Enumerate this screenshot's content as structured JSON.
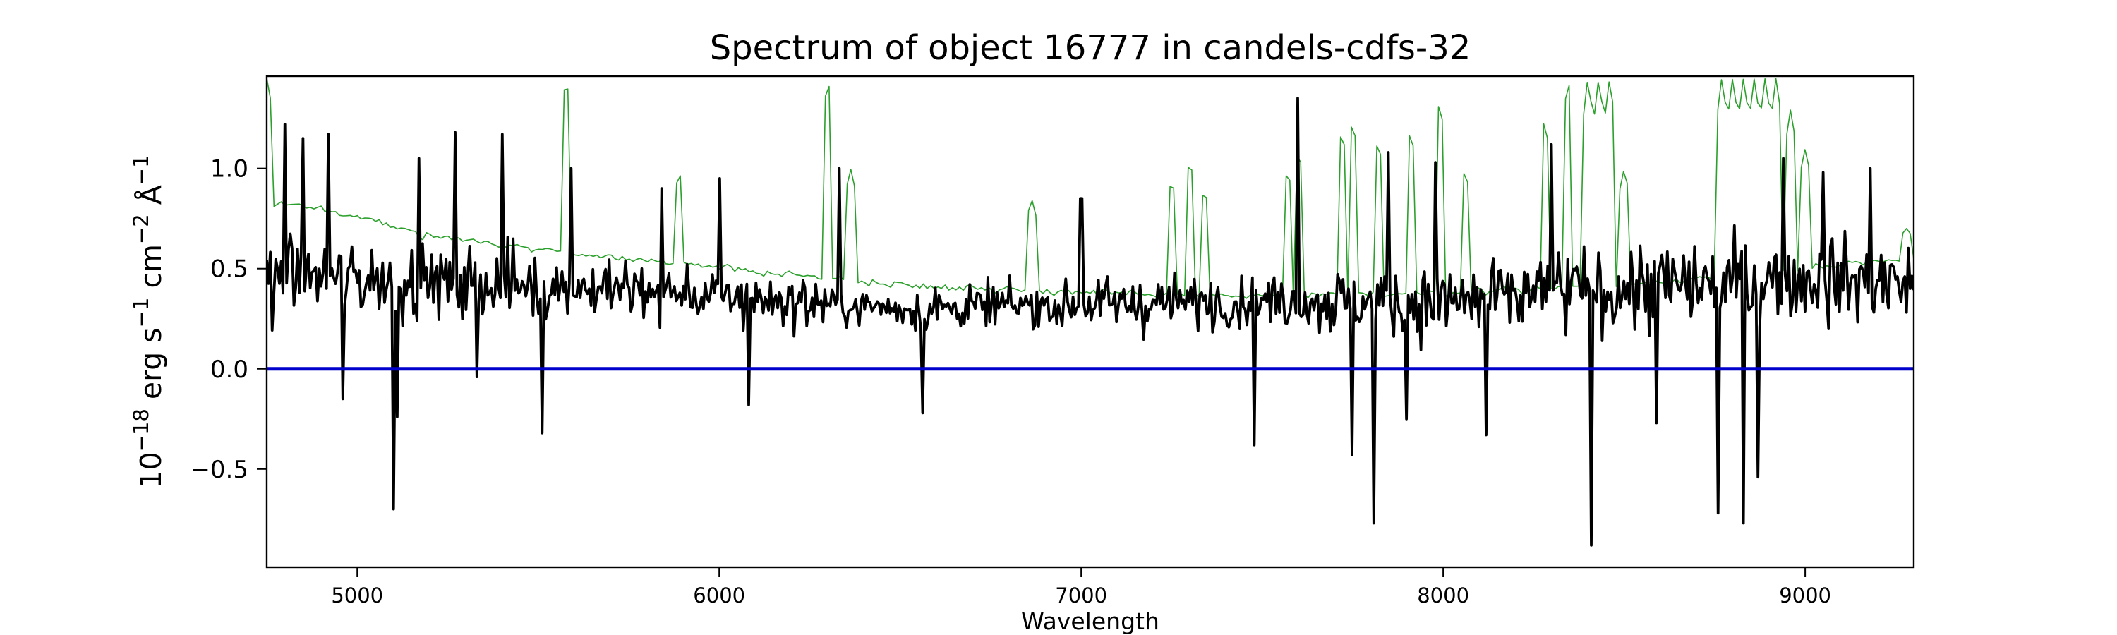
{
  "chart_data": {
    "type": "line",
    "title": "Spectrum of object 16777 in candels-cdfs-32",
    "xlabel": "Wavelength",
    "ylabel_parts": [
      "10",
      "−18",
      " erg s",
      "−1",
      " cm",
      "−2",
      " Å",
      "−1"
    ],
    "xlim": [
      4750,
      9300
    ],
    "ylim": [
      -0.99,
      1.46
    ],
    "x_ticks": [
      5000,
      6000,
      7000,
      8000,
      9000
    ],
    "x_tick_labels": [
      "5000",
      "6000",
      "7000",
      "8000",
      "9000"
    ],
    "y_ticks": [
      -0.5,
      0.0,
      0.5,
      1.0
    ],
    "y_tick_labels": [
      "−0.5",
      "0.0",
      "0.5",
      "1.0"
    ],
    "grid": false,
    "series": [
      {
        "role": "flux",
        "color": "#000000",
        "x_start": 4750,
        "x_end": 9300,
        "n": 910,
        "base_profile": [
          [
            4750,
            0.47
          ],
          [
            5000,
            0.45
          ],
          [
            5500,
            0.42
          ],
          [
            6000,
            0.36
          ],
          [
            6500,
            0.3
          ],
          [
            7000,
            0.32
          ],
          [
            7500,
            0.34
          ],
          [
            8000,
            0.33
          ],
          [
            8500,
            0.4
          ],
          [
            9000,
            0.45
          ],
          [
            9300,
            0.43
          ]
        ],
        "noise_profile": [
          [
            4750,
            0.26
          ],
          [
            5500,
            0.22
          ],
          [
            6500,
            0.13
          ],
          [
            7500,
            0.17
          ],
          [
            8300,
            0.28
          ],
          [
            9300,
            0.26
          ]
        ],
        "features": [
          [
            4800,
            1.22
          ],
          [
            4850,
            1.15
          ],
          [
            4920,
            1.17
          ],
          [
            4960,
            -0.15
          ],
          [
            5100,
            -0.7
          ],
          [
            5110,
            -0.24
          ],
          [
            5170,
            1.05
          ],
          [
            5270,
            1.18
          ],
          [
            5330,
            -0.04
          ],
          [
            5400,
            1.17
          ],
          [
            5510,
            -0.32
          ],
          [
            5590,
            1.0
          ],
          [
            5840,
            0.9
          ],
          [
            6000,
            0.95
          ],
          [
            6080,
            -0.18
          ],
          [
            6330,
            1.0
          ],
          [
            6560,
            -0.22
          ],
          [
            7000,
            0.85
          ],
          [
            7480,
            -0.38
          ],
          [
            7600,
            1.35
          ],
          [
            7750,
            -0.43
          ],
          [
            7810,
            -0.77
          ],
          [
            7850,
            1.08
          ],
          [
            7900,
            -0.25
          ],
          [
            7980,
            1.03
          ],
          [
            8120,
            -0.33
          ],
          [
            8300,
            1.12
          ],
          [
            8410,
            -0.88
          ],
          [
            8590,
            -0.27
          ],
          [
            8760,
            -0.72
          ],
          [
            8830,
            -0.77
          ],
          [
            8870,
            -0.54
          ],
          [
            8940,
            1.05
          ],
          [
            9050,
            0.98
          ],
          [
            9180,
            1.0
          ]
        ]
      },
      {
        "role": "error",
        "color": "#2ca02c",
        "x_start": 4750,
        "x_end": 9300,
        "n": 455,
        "base_profile": [
          [
            4750,
            0.8
          ],
          [
            4800,
            0.83
          ],
          [
            5000,
            0.76
          ],
          [
            5200,
            0.66
          ],
          [
            5500,
            0.6
          ],
          [
            5800,
            0.54
          ],
          [
            6200,
            0.47
          ],
          [
            6500,
            0.42
          ],
          [
            7000,
            0.38
          ],
          [
            7500,
            0.36
          ],
          [
            8000,
            0.38
          ],
          [
            8500,
            0.42
          ],
          [
            9000,
            0.5
          ],
          [
            9300,
            0.55
          ]
        ],
        "spikes": [
          [
            4750,
            1.45
          ],
          [
            5577,
            1.46
          ],
          [
            5890,
            0.98
          ],
          [
            6300,
            1.46
          ],
          [
            6363,
            1.0
          ],
          [
            6863,
            0.85
          ],
          [
            7250,
            0.95
          ],
          [
            7300,
            1.05
          ],
          [
            7340,
            0.9
          ],
          [
            7570,
            1.0
          ],
          [
            7600,
            1.1
          ],
          [
            7720,
            1.2
          ],
          [
            7750,
            1.25
          ],
          [
            7820,
            1.15
          ],
          [
            7910,
            1.2
          ],
          [
            7990,
            1.35
          ],
          [
            8060,
            1.0
          ],
          [
            8280,
            1.25
          ],
          [
            8345,
            1.46
          ],
          [
            8400,
            1.46
          ],
          [
            8430,
            1.46
          ],
          [
            8460,
            1.46
          ],
          [
            8500,
            1.0
          ],
          [
            8770,
            1.46
          ],
          [
            8800,
            1.46
          ],
          [
            8830,
            1.46
          ],
          [
            8860,
            1.46
          ],
          [
            8890,
            1.46
          ],
          [
            8920,
            1.46
          ],
          [
            8960,
            1.3
          ],
          [
            9000,
            1.1
          ],
          [
            9280,
            0.7
          ]
        ]
      },
      {
        "role": "zero",
        "color": "#0000cc",
        "x": [
          4750,
          9300
        ],
        "y": [
          0.0,
          0.0
        ]
      }
    ]
  }
}
